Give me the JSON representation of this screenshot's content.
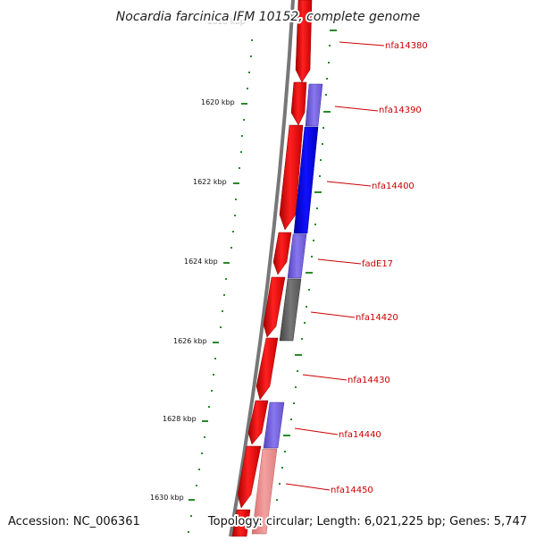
{
  "title": "Nocardia farcinica IFM 10152, complete genome",
  "accession": "Accession: NC_006361",
  "topology": "Topology: circular; Length: 6,021,225 bp; Genes: 5,747",
  "scale_labels": [
    "1620 kbp",
    "1622 kbp",
    "1624 kbp",
    "1626 kbp",
    "1628 kbp",
    "1630 kbp"
  ],
  "gene_labels": [
    "nfa14380",
    "nfa14390",
    "nfa14400",
    "fadE17",
    "nfa14420",
    "nfa14430",
    "nfa14440",
    "nfa14450"
  ],
  "colors": {
    "forward_gene": "#ff0000",
    "blue_gene": "#0000ee",
    "light_blue_gene": "#7766dd",
    "gray_gene": "#666666",
    "pink_gene": "#f09090",
    "backbone": "#777777",
    "tick": "#2a8a2a",
    "label": "#cc0000"
  }
}
